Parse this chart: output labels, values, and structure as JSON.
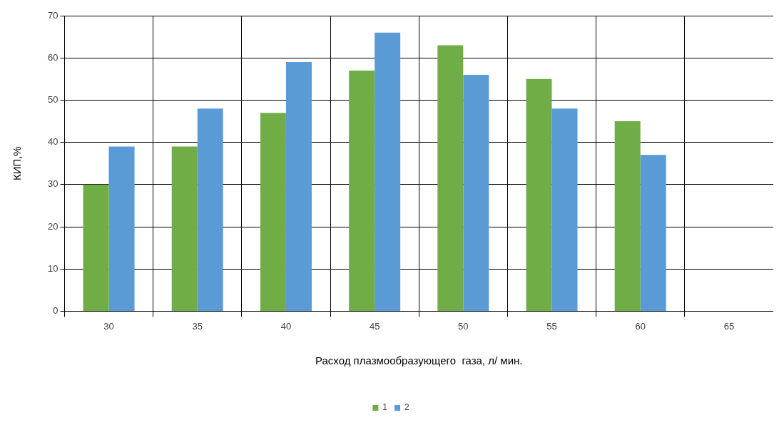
{
  "chart_data": {
    "type": "bar",
    "xlabel": "Расход плазмообразующего  газа, л/ мин.",
    "ylabel": "КИП,%",
    "categories": [
      "30",
      "35",
      "40",
      "45",
      "50",
      "55",
      "60",
      "65"
    ],
    "series": [
      {
        "name": "1",
        "color": "#70ad47",
        "values": [
          30,
          39,
          47,
          57,
          63,
          55,
          45,
          null
        ]
      },
      {
        "name": "2",
        "color": "#5b9bd5",
        "values": [
          39,
          48,
          59,
          66,
          56,
          48,
          37,
          null
        ]
      }
    ],
    "ylim": [
      0,
      70
    ],
    "yticks": [
      0,
      10,
      20,
      30,
      40,
      50,
      60,
      70
    ],
    "grid": true,
    "legend": "bottom"
  }
}
